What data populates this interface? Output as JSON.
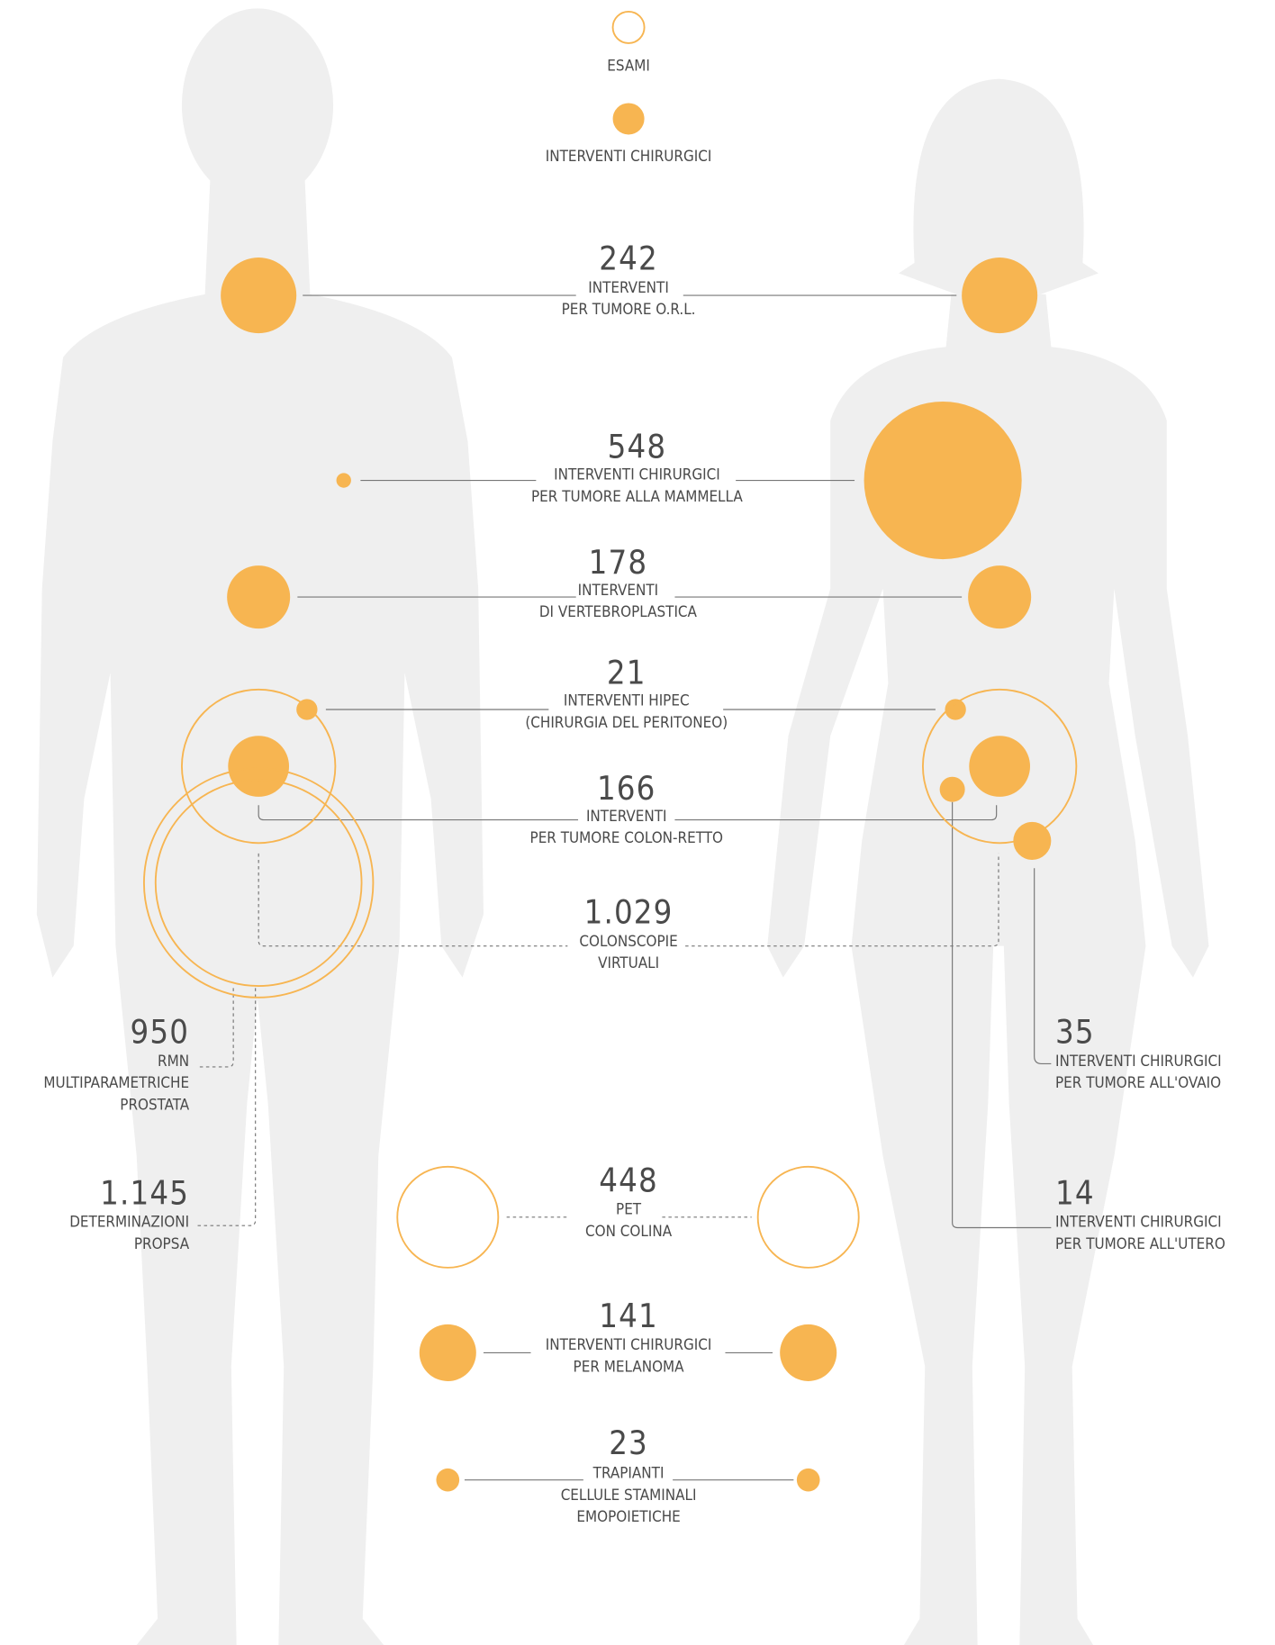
{
  "legend": [
    {
      "label": "ESAMI"
    },
    {
      "label": "INTERVENTI CHIRURGICI"
    }
  ],
  "items": [
    {
      "value": "242",
      "lines": [
        "INTERVENTI",
        "PER TUMORE O.R.L."
      ]
    },
    {
      "value": "548",
      "lines": [
        "INTERVENTI CHIRURGICI",
        "PER TUMORE ALLA MAMMELLA"
      ]
    },
    {
      "value": "178",
      "lines": [
        "INTERVENTI",
        "DI VERTEBROPLASTICA"
      ]
    },
    {
      "value": "21",
      "lines": [
        "INTERVENTI HIPEC",
        "(CHIRURGIA DEL PERITONEO)"
      ]
    },
    {
      "value": "166",
      "lines": [
        "INTERVENTI",
        "PER TUMORE COLON-RETTO"
      ]
    },
    {
      "value": "1.029",
      "lines": [
        "COLONSCOPIE",
        "VIRTUALI"
      ]
    },
    {
      "value": "950",
      "lines": [
        "RMN",
        "MULTIPARAMETRICHE",
        "PROSTATA"
      ]
    },
    {
      "value": "1.145",
      "lines": [
        "DETERMINAZIONI",
        "PROPSA"
      ]
    },
    {
      "value": "35",
      "lines": [
        "INTERVENTI CHIRURGICI",
        "PER TUMORE ALL'OVAIO"
      ]
    },
    {
      "value": "14",
      "lines": [
        "INTERVENTI CHIRURGICI",
        "PER TUMORE ALL'UTERO"
      ]
    },
    {
      "value": "448",
      "lines": [
        "PET",
        "CON COLINA"
      ]
    },
    {
      "value": "141",
      "lines": [
        "INTERVENTI CHIRURGICI",
        "PER MELANOMA"
      ]
    },
    {
      "value": "23",
      "lines": [
        "TRAPIANTI",
        "CELLULE STAMINALI",
        "EMOPOIETICHE"
      ]
    }
  ]
}
